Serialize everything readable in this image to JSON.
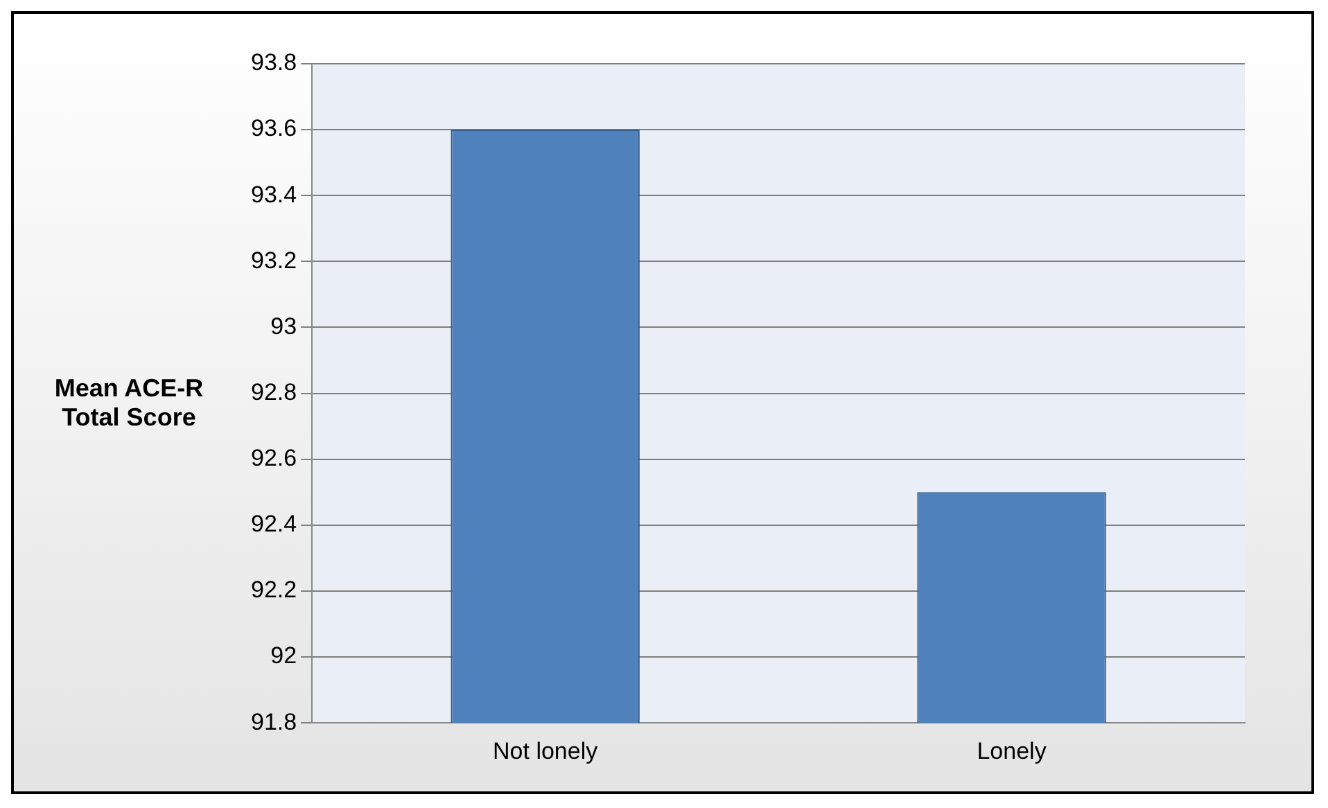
{
  "chart_data": {
    "type": "bar",
    "ylabel": "Mean ACE-R Total Score",
    "categories": [
      "Not lonely",
      "Lonely"
    ],
    "values": [
      93.6,
      92.5
    ],
    "color": "#4f81bd",
    "ylim": [
      91.8,
      93.8
    ],
    "yticks": [
      91.8,
      92,
      92.2,
      92.4,
      92.6,
      92.8,
      93,
      93.2,
      93.4,
      93.6,
      93.8
    ],
    "grid": "y"
  }
}
